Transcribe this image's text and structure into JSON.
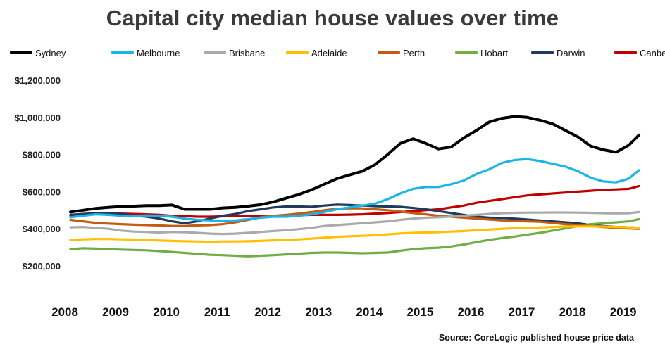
{
  "chart_data": {
    "type": "line",
    "title": "Capital city median house values over time",
    "source": "Source: CoreLogic published house price data",
    "x": [
      2008,
      2008.25,
      2008.5,
      2008.75,
      2009,
      2009.25,
      2009.5,
      2009.75,
      2010,
      2010.25,
      2010.5,
      2010.75,
      2011,
      2011.25,
      2011.5,
      2011.75,
      2012,
      2012.25,
      2012.5,
      2012.75,
      2013,
      2013.25,
      2013.5,
      2013.75,
      2014,
      2014.25,
      2014.5,
      2014.75,
      2015,
      2015.25,
      2015.5,
      2015.75,
      2016,
      2016.25,
      2016.5,
      2016.75,
      2017,
      2017.25,
      2017.5,
      2017.75,
      2018,
      2018.25,
      2018.5,
      2018.75,
      2019,
      2019.2
    ],
    "xticks": [
      "2008",
      "2009",
      "2010",
      "2011",
      "2012",
      "2013",
      "2014",
      "2015",
      "2016",
      "2017",
      "2018",
      "2019"
    ],
    "xtick_values": [
      2008,
      2009,
      2010,
      2011,
      2012,
      2013,
      2014,
      2015,
      2016,
      2017,
      2018,
      2019
    ],
    "xlim": [
      2008,
      2019.2
    ],
    "ylim": [
      100000,
      1250000
    ],
    "yticks": [
      200000,
      400000,
      600000,
      800000,
      1000000,
      1200000
    ],
    "ytick_labels": [
      "$200,000",
      "$400,000",
      "$600,000",
      "$800,000",
      "$1,000,000",
      "$1,200,000"
    ],
    "legend_position": "top",
    "grid": false,
    "series": [
      {
        "name": "Sydney",
        "color": "#000000",
        "values": [
          490000,
          500000,
          510000,
          515000,
          520000,
          522000,
          525000,
          525000,
          528000,
          505000,
          505000,
          505000,
          512000,
          515000,
          522000,
          530000,
          545000,
          565000,
          585000,
          610000,
          640000,
          670000,
          690000,
          710000,
          745000,
          800000,
          860000,
          885000,
          860000,
          830000,
          840000,
          890000,
          930000,
          975000,
          995000,
          1005000,
          1000000,
          985000,
          965000,
          930000,
          895000,
          845000,
          825000,
          812000,
          850000,
          905000
        ]
      },
      {
        "name": "Melbourne",
        "color": "#1ab5e6",
        "values": [
          462000,
          470000,
          478000,
          475000,
          470000,
          470000,
          472000,
          470000,
          465000,
          455000,
          448000,
          445000,
          442000,
          445000,
          452000,
          460000,
          465000,
          465000,
          470000,
          478000,
          490000,
          505000,
          515000,
          525000,
          535000,
          560000,
          590000,
          615000,
          625000,
          625000,
          640000,
          660000,
          695000,
          720000,
          755000,
          770000,
          775000,
          765000,
          750000,
          735000,
          710000,
          675000,
          655000,
          650000,
          670000,
          715000
        ]
      },
      {
        "name": "Brisbane",
        "color": "#aaaaaa",
        "values": [
          408000,
          410000,
          405000,
          400000,
          390000,
          385000,
          383000,
          380000,
          383000,
          382000,
          378000,
          374000,
          372000,
          374000,
          378000,
          383000,
          388000,
          392000,
          398000,
          405000,
          415000,
          420000,
          425000,
          430000,
          435000,
          440000,
          448000,
          455000,
          460000,
          462000,
          466000,
          470000,
          475000,
          480000,
          484000,
          486000,
          487000,
          487000,
          488000,
          488000,
          487000,
          486000,
          484000,
          483000,
          484000,
          490000
        ]
      },
      {
        "name": "Adelaide",
        "color": "#ffc000",
        "values": [
          340000,
          343000,
          345000,
          345000,
          343000,
          342000,
          340000,
          337000,
          335000,
          333000,
          332000,
          330000,
          332000,
          332000,
          333000,
          335000,
          338000,
          340000,
          343000,
          347000,
          352000,
          357000,
          360000,
          362000,
          365000,
          370000,
          375000,
          378000,
          380000,
          382000,
          385000,
          388000,
          392000,
          396000,
          400000,
          403000,
          405000,
          407000,
          410000,
          412000,
          413000,
          413000,
          412000,
          410000,
          408000,
          405000
        ]
      },
      {
        "name": "Perth",
        "color": "#c55a11",
        "values": [
          448000,
          440000,
          432000,
          428000,
          425000,
          422000,
          420000,
          418000,
          415000,
          415000,
          418000,
          420000,
          425000,
          435000,
          448000,
          462000,
          470000,
          475000,
          482000,
          490000,
          500000,
          508000,
          510000,
          510000,
          505000,
          500000,
          493000,
          485000,
          478000,
          470000,
          465000,
          460000,
          455000,
          450000,
          445000,
          442000,
          440000,
          438000,
          432000,
          425000,
          420000,
          415000,
          410000,
          405000,
          402000,
          400000
        ]
      },
      {
        "name": "Hobart",
        "color": "#70ad47",
        "values": [
          290000,
          295000,
          293000,
          290000,
          288000,
          286000,
          284000,
          280000,
          275000,
          270000,
          265000,
          260000,
          258000,
          255000,
          252000,
          255000,
          258000,
          262000,
          266000,
          270000,
          272000,
          272000,
          270000,
          268000,
          270000,
          272000,
          282000,
          290000,
          295000,
          298000,
          305000,
          315000,
          328000,
          340000,
          350000,
          358000,
          368000,
          378000,
          390000,
          402000,
          415000,
          425000,
          430000,
          435000,
          440000,
          452000
        ]
      },
      {
        "name": "Darwin",
        "color": "#1f3b5c",
        "values": [
          475000,
          480000,
          485000,
          482000,
          480000,
          470000,
          465000,
          455000,
          440000,
          430000,
          440000,
          455000,
          470000,
          480000,
          495000,
          505000,
          515000,
          520000,
          520000,
          518000,
          525000,
          530000,
          528000,
          525000,
          522000,
          520000,
          518000,
          512000,
          505000,
          495000,
          485000,
          475000,
          465000,
          460000,
          458000,
          455000,
          450000,
          445000,
          440000,
          435000,
          430000,
          420000,
          415000,
          410000,
          408000,
          405000
        ]
      },
      {
        "name": "Canberra",
        "color": "#c00000",
        "values": [
          470000,
          478000,
          485000,
          485000,
          482000,
          480000,
          478000,
          475000,
          470000,
          468000,
          465000,
          465000,
          467000,
          468000,
          470000,
          468000,
          470000,
          470000,
          473000,
          475000,
          475000,
          475000,
          476000,
          478000,
          482000,
          485000,
          490000,
          495000,
          500000,
          505000,
          515000,
          525000,
          540000,
          550000,
          560000,
          570000,
          580000,
          585000,
          590000,
          595000,
          600000,
          605000,
          610000,
          612000,
          615000,
          630000
        ]
      }
    ]
  }
}
